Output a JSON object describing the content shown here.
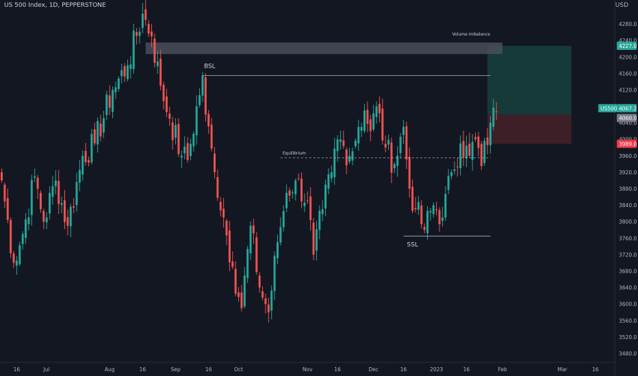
{
  "header": {
    "title": "US 500 Index, 1D, PEPPERSTONE",
    "currency": "USD"
  },
  "colors": {
    "background": "#131722",
    "up": "#26a69a",
    "down": "#ef5350",
    "axis_text": "#b2b5be",
    "level_line": "#b2b5be",
    "imbalance_zone": "#4a4e5a",
    "profit_zone": "#163a38",
    "loss_zone": "#3d1f27",
    "last_price_tag": "#26a69a",
    "entry_tag": "#787b86",
    "stop_tag": "#f23645",
    "target_tag": "#26a69a"
  },
  "chart_data": {
    "type": "candlestick",
    "y_axis": {
      "ticks": [
        3480,
        3520,
        3560,
        3600,
        3640,
        3680,
        3720,
        3760,
        3800,
        3840,
        3880,
        3920,
        3960,
        4000,
        4040,
        4080,
        4120,
        4160,
        4200,
        4240,
        4280
      ],
      "tick_labels": [
        "3480.0",
        "3520.0",
        "3560.0",
        "3600.0",
        "3640.0",
        "3680.0",
        "3720.0",
        "3760.0",
        "3800.0",
        "3840.0",
        "3880.0",
        "3920.0",
        "3960.0",
        "4000.0",
        "4040.0",
        "4080.0",
        "4120.0",
        "4160.0",
        "4200.0",
        "4240.0",
        "4280.0"
      ],
      "range": [
        3465,
        4315
      ]
    },
    "x_axis": {
      "labels": [
        {
          "text": "16",
          "bar": 5
        },
        {
          "text": "Jul",
          "bar": 15
        },
        {
          "text": "Aug",
          "bar": 36
        },
        {
          "text": "16",
          "bar": 47
        },
        {
          "text": "Sep",
          "bar": 58
        },
        {
          "text": "16",
          "bar": 69
        },
        {
          "text": "Oct",
          "bar": 79
        },
        {
          "text": "Nov",
          "bar": 102
        },
        {
          "text": "16",
          "bar": 112
        },
        {
          "text": "Dec",
          "bar": 124
        },
        {
          "text": "16",
          "bar": 134
        },
        {
          "text": "2023",
          "bar": 145
        },
        {
          "text": "16",
          "bar": 155
        },
        {
          "text": "Feb",
          "bar": 167
        },
        {
          "text": "Mar",
          "bar": 187
        },
        {
          "text": "16",
          "bar": 198
        }
      ]
    },
    "anchors": [
      {
        "bar": 0,
        "price": 3900
      },
      {
        "bar": 4,
        "price": 3700
      },
      {
        "bar": 7,
        "price": 3770
      },
      {
        "bar": 11,
        "price": 3910
      },
      {
        "bar": 14,
        "price": 3800
      },
      {
        "bar": 18,
        "price": 3900
      },
      {
        "bar": 22,
        "price": 3790
      },
      {
        "bar": 27,
        "price": 3960
      },
      {
        "bar": 31,
        "price": 3990
      },
      {
        "bar": 37,
        "price": 4120
      },
      {
        "bar": 42,
        "price": 4180
      },
      {
        "bar": 47,
        "price": 4305
      },
      {
        "bar": 50,
        "price": 4250
      },
      {
        "bar": 53,
        "price": 4130
      },
      {
        "bar": 56,
        "price": 4050
      },
      {
        "bar": 60,
        "price": 3960
      },
      {
        "bar": 62,
        "price": 3950
      },
      {
        "bar": 67,
        "price": 4155
      },
      {
        "bar": 68,
        "price": 4060
      },
      {
        "bar": 71,
        "price": 3920
      },
      {
        "bar": 74,
        "price": 3810
      },
      {
        "bar": 77,
        "price": 3690
      },
      {
        "bar": 80,
        "price": 3590
      },
      {
        "bar": 83,
        "price": 3790
      },
      {
        "bar": 86,
        "price": 3640
      },
      {
        "bar": 89,
        "price": 3580
      },
      {
        "bar": 92,
        "price": 3750
      },
      {
        "bar": 95,
        "price": 3870
      },
      {
        "bar": 98,
        "price": 3900
      },
      {
        "bar": 102,
        "price": 3850
      },
      {
        "bar": 104,
        "price": 3720
      },
      {
        "bar": 107,
        "price": 3830
      },
      {
        "bar": 110,
        "price": 3920
      },
      {
        "bar": 112,
        "price": 4000
      },
      {
        "bar": 116,
        "price": 3960
      },
      {
        "bar": 119,
        "price": 4030
      },
      {
        "bar": 121,
        "price": 4070
      },
      {
        "bar": 123,
        "price": 4020
      },
      {
        "bar": 125,
        "price": 4080
      },
      {
        "bar": 128,
        "price": 3980
      },
      {
        "bar": 131,
        "price": 3940
      },
      {
        "bar": 134,
        "price": 4030
      },
      {
        "bar": 136,
        "price": 3880
      },
      {
        "bar": 138,
        "price": 3830
      },
      {
        "bar": 141,
        "price": 3780
      },
      {
        "bar": 144,
        "price": 3840
      },
      {
        "bar": 147,
        "price": 3810
      },
      {
        "bar": 150,
        "price": 3920
      },
      {
        "bar": 153,
        "price": 3990
      },
      {
        "bar": 156,
        "price": 3960
      },
      {
        "bar": 158,
        "price": 4000
      },
      {
        "bar": 160,
        "price": 3935
      },
      {
        "bar": 163,
        "price": 4040
      },
      {
        "bar": 165,
        "price": 4067
      }
    ],
    "last_bar": 165,
    "annotations": {
      "volume_imbalance": {
        "label": "Volume Imbalance",
        "from_bar": 48,
        "to_bar": 167,
        "top": 4235,
        "bottom": 4207
      },
      "bsl": {
        "label": "BSL",
        "price": 4155,
        "from_bar": 67,
        "to_bar": 163
      },
      "equilibrium": {
        "label": "Equilibrium",
        "price": 3955,
        "from_bar": 93,
        "to_bar": 163
      },
      "ssl": {
        "label": "SSL",
        "price": 3765,
        "from_bar": 134,
        "to_bar": 163
      },
      "position": {
        "from_bar": 162,
        "to_bar": 190,
        "target": 4227,
        "entry": 4060,
        "stop": 3989
      }
    },
    "price_tags": {
      "target": "4227.0",
      "symbol": "US500",
      "last": "4067.2",
      "entry": "4060.0",
      "stop": "3989.0"
    }
  }
}
